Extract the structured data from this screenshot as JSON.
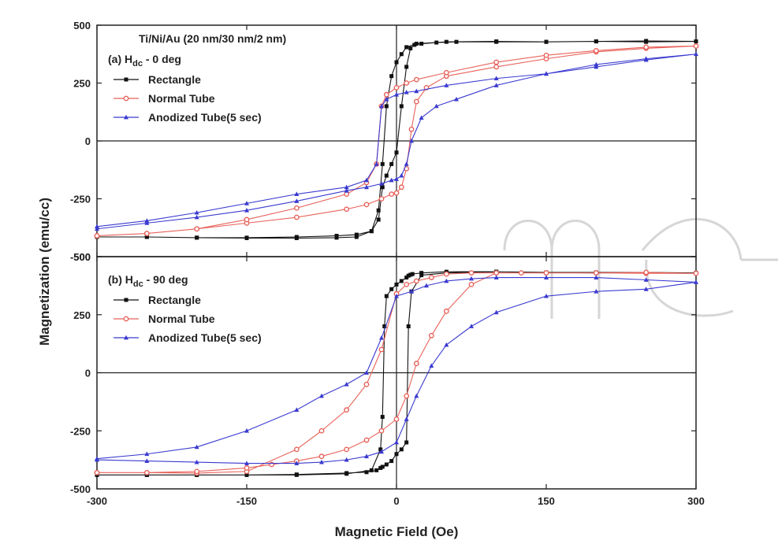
{
  "chart_data": {
    "type": "line",
    "xlabel": "Magnetic Field (Oe)",
    "ylabel": "Magnetization (emu/cc)",
    "xlim": [
      -300,
      300
    ],
    "x_ticks": [
      "-300",
      "-150",
      "0",
      "150",
      "300"
    ],
    "colors": {
      "Rectangle": "#111111",
      "Normal Tube": "#e8625a",
      "Anodized Tube(5 sec)": "#3a3ad0"
    },
    "panels": [
      {
        "id": "a",
        "header": "Ti/Ni/Au (20 nm/30 nm/2 nm)",
        "label_main": "(a) H",
        "label_sub": "dc",
        "label_rest": " - 0 deg",
        "ylim": [
          -500,
          500
        ],
        "y_ticks": [
          "500",
          "250",
          "0",
          "-250",
          "-500"
        ],
        "legend": [
          "Rectangle",
          "Normal Tube",
          "Anodized Tube(5 sec)"
        ],
        "series": [
          {
            "name": "Rectangle",
            "marker": "square",
            "x": [
              -300,
              -250,
              -200,
              -150,
              -100,
              -60,
              -40,
              -25,
              -18,
              -14,
              -10,
              -5,
              0,
              5,
              10,
              14,
              18,
              25,
              40,
              60,
              100,
              150,
              200,
              250,
              300,
              250,
              200,
              150,
              100,
              50,
              20,
              10,
              5,
              0,
              -5,
              -10,
              -14,
              -18,
              -25,
              -40,
              -60,
              -100,
              -150,
              -200,
              -250,
              -300
            ],
            "y": [
              -415,
              -415,
              -418,
              -420,
              -420,
              -418,
              -415,
              -390,
              -340,
              -200,
              -150,
              -100,
              -50,
              150,
              320,
              400,
              415,
              420,
              425,
              428,
              428,
              428,
              430,
              432,
              430,
              428,
              430,
              428,
              430,
              428,
              420,
              405,
              375,
              340,
              280,
              150,
              -100,
              -300,
              -390,
              -405,
              -410,
              -415,
              -418,
              -418,
              -415,
              -415
            ]
          },
          {
            "name": "Normal Tube",
            "marker": "circle",
            "x": [
              -300,
              -250,
              -200,
              -150,
              -100,
              -50,
              -30,
              -15,
              -5,
              0,
              5,
              10,
              15,
              20,
              30,
              50,
              100,
              150,
              200,
              250,
              300,
              250,
              200,
              150,
              100,
              50,
              20,
              10,
              0,
              -10,
              -15,
              -20,
              -30,
              -50,
              -100,
              -150,
              -200,
              -250,
              -300
            ],
            "y": [
              -410,
              -400,
              -380,
              -355,
              -330,
              -295,
              -275,
              -250,
              -230,
              -225,
              -200,
              -120,
              50,
              170,
              230,
              280,
              320,
              355,
              385,
              400,
              410,
              405,
              390,
              370,
              340,
              295,
              265,
              250,
              230,
              200,
              150,
              -100,
              -180,
              -230,
              -290,
              -340,
              -380,
              -400,
              -410
            ]
          },
          {
            "name": "Anodized Tube(5 sec)",
            "marker": "triangle",
            "x": [
              -300,
              -250,
              -200,
              -150,
              -100,
              -50,
              -30,
              -15,
              -5,
              0,
              5,
              10,
              15,
              25,
              40,
              60,
              100,
              150,
              200,
              250,
              300,
              250,
              200,
              150,
              100,
              50,
              20,
              10,
              0,
              -10,
              -15,
              -20,
              -30,
              -50,
              -100,
              -150,
              -200,
              -250,
              -300
            ],
            "y": [
              -380,
              -355,
              -330,
              -300,
              -260,
              -215,
              -200,
              -185,
              -170,
              -165,
              -150,
              -100,
              0,
              100,
              150,
              180,
              240,
              290,
              330,
              355,
              375,
              350,
              320,
              290,
              270,
              240,
              215,
              210,
              200,
              180,
              150,
              -100,
              -170,
              -200,
              -230,
              -270,
              -310,
              -345,
              -370
            ]
          }
        ]
      },
      {
        "id": "b",
        "header": "",
        "label_main": "(b) H",
        "label_sub": "dc",
        "label_rest": " - 90 deg",
        "ylim": [
          -500,
          500
        ],
        "y_ticks": [
          "500",
          "250",
          "0",
          "-250"
        ],
        "bottom_tick": "-500",
        "legend": [
          "Rectangle",
          "Normal Tube",
          "Anodized Tube(5 sec)"
        ],
        "series": [
          {
            "name": "Rectangle",
            "marker": "square",
            "x": [
              -300,
              -250,
              -200,
              -150,
              -100,
              -50,
              -25,
              -16,
              -14,
              -12,
              -10,
              -5,
              0,
              5,
              10,
              12,
              14,
              16,
              25,
              50,
              100,
              150,
              200,
              250,
              300,
              250,
              200,
              150,
              100,
              50,
              25,
              15,
              12,
              10,
              5,
              0,
              -5,
              -10,
              -14,
              -16,
              -20,
              -30,
              -50,
              -100,
              -150,
              -200,
              -250,
              -300
            ],
            "y": [
              -440,
              -440,
              -440,
              -440,
              -440,
              -435,
              -420,
              -330,
              -190,
              200,
              330,
              360,
              380,
              395,
              410,
              418,
              422,
              425,
              430,
              435,
              435,
              432,
              430,
              432,
              430,
              432,
              432,
              432,
              435,
              430,
              420,
              350,
              200,
              -300,
              -330,
              -350,
              -380,
              -395,
              -405,
              -410,
              -420,
              -428,
              -432,
              -438,
              -440,
              -440,
              -440,
              -440
            ]
          },
          {
            "name": "Normal Tube",
            "marker": "circle",
            "x": [
              -300,
              -250,
              -200,
              -150,
              -100,
              -75,
              -50,
              -30,
              -15,
              0,
              10,
              20,
              35,
              50,
              75,
              100,
              125,
              150,
              200,
              250,
              300,
              250,
              200,
              150,
              100,
              75,
              50,
              35,
              20,
              10,
              0,
              -15,
              -30,
              -50,
              -75,
              -100,
              -125,
              -150,
              -200,
              -250,
              -300
            ],
            "y": [
              -430,
              -430,
              -432,
              -425,
              -330,
              -250,
              -160,
              -50,
              100,
              340,
              380,
              395,
              410,
              425,
              430,
              430,
              430,
              430,
              430,
              428,
              428,
              432,
              430,
              430,
              430,
              380,
              265,
              160,
              40,
              -100,
              -200,
              -250,
              -290,
              -330,
              -360,
              -380,
              -395,
              -410,
              -425,
              -430,
              -430
            ]
          },
          {
            "name": "Anodized Tube(5 sec)",
            "marker": "triangle",
            "x": [
              -300,
              -250,
              -200,
              -150,
              -100,
              -75,
              -50,
              -30,
              -15,
              0,
              15,
              30,
              50,
              75,
              100,
              150,
              200,
              250,
              300,
              250,
              200,
              150,
              100,
              75,
              50,
              35,
              20,
              10,
              0,
              -15,
              -30,
              -50,
              -75,
              -100,
              -150,
              -200,
              -250,
              -300
            ],
            "y": [
              -370,
              -350,
              -320,
              -250,
              -160,
              -100,
              -50,
              0,
              150,
              330,
              350,
              375,
              395,
              405,
              410,
              410,
              410,
              400,
              390,
              360,
              350,
              330,
              260,
              200,
              120,
              30,
              -100,
              -200,
              -300,
              -340,
              -360,
              -375,
              -385,
              -390,
              -390,
              -385,
              -380,
              -375
            ]
          }
        ]
      }
    ]
  }
}
